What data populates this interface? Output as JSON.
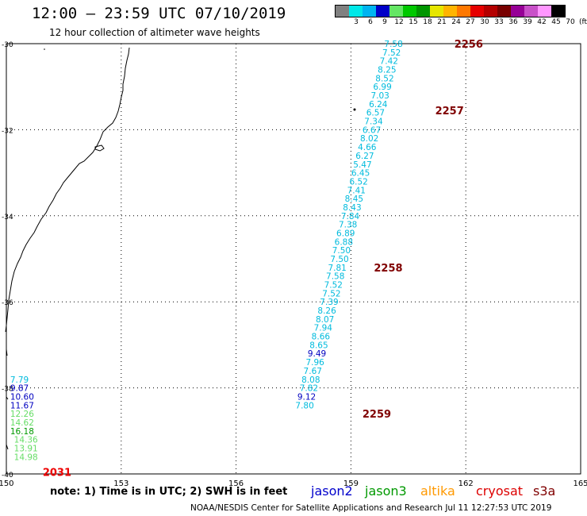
{
  "header": {
    "title": "12:00 – 23:59 UTC 07/10/2019",
    "subtitle": "12 hour collection of altimeter wave heights"
  },
  "legend": {
    "unit": "(ft)",
    "bins": [
      {
        "label": "",
        "color": "#808080"
      },
      {
        "label": "3",
        "color": "#00e8e8"
      },
      {
        "label": "6",
        "color": "#00b4f0"
      },
      {
        "label": "9",
        "color": "#0000c8"
      },
      {
        "label": "12",
        "color": "#64e664"
      },
      {
        "label": "15",
        "color": "#00c800"
      },
      {
        "label": "18",
        "color": "#009600"
      },
      {
        "label": "21",
        "color": "#e6e600"
      },
      {
        "label": "24",
        "color": "#ffb400"
      },
      {
        "label": "27",
        "color": "#ff7800"
      },
      {
        "label": "30",
        "color": "#e60000"
      },
      {
        "label": "33",
        "color": "#b40000"
      },
      {
        "label": "36",
        "color": "#780000"
      },
      {
        "label": "39",
        "color": "#960096"
      },
      {
        "label": "42",
        "color": "#c850c8"
      },
      {
        "label": "45",
        "color": "#ff96ff"
      },
      {
        "label": "70",
        "color": "#000000"
      }
    ]
  },
  "map": {
    "x_ticks": [
      "150",
      "153",
      "156",
      "159",
      "162",
      "165"
    ],
    "y_ticks": [
      "-30",
      "-32",
      "-34",
      "-36",
      "-38",
      "-40"
    ],
    "lon_range": [
      150,
      165
    ],
    "lat_range": [
      -30,
      -40
    ],
    "colors": {
      "cyan": "#00bbdd",
      "blue": "#0000c0",
      "light_green": "#66dd66",
      "green": "#009900",
      "time_label": "#800000",
      "red": "#ee0000"
    }
  },
  "tracks": [
    {
      "id": "pass-1",
      "time_labels": [
        {
          "text": "2256",
          "lon": 161.7,
          "lat": -30.0
        },
        {
          "text": "2257",
          "lon": 161.2,
          "lat": -31.55
        },
        {
          "text": "2258",
          "lon": 159.6,
          "lat": -35.2
        },
        {
          "text": "2259",
          "lon": 159.3,
          "lat": -38.6
        }
      ],
      "points": [
        {
          "text": "7.58",
          "lon": 159.87,
          "lat": -30.0,
          "color": "cyan"
        },
        {
          "text": "7.52",
          "lon": 159.82,
          "lat": -30.2,
          "color": "cyan"
        },
        {
          "text": "7.42",
          "lon": 159.75,
          "lat": -30.4,
          "color": "cyan"
        },
        {
          "text": "8.25",
          "lon": 159.7,
          "lat": -30.6,
          "color": "cyan"
        },
        {
          "text": "8.52",
          "lon": 159.64,
          "lat": -30.8,
          "color": "cyan"
        },
        {
          "text": "6.99",
          "lon": 159.58,
          "lat": -31.0,
          "color": "cyan"
        },
        {
          "text": "7.03",
          "lon": 159.52,
          "lat": -31.2,
          "color": "cyan"
        },
        {
          "text": "6.24",
          "lon": 159.47,
          "lat": -31.4,
          "color": "cyan"
        },
        {
          "text": "6.57",
          "lon": 159.4,
          "lat": -31.6,
          "color": "cyan"
        },
        {
          "text": "7.34",
          "lon": 159.35,
          "lat": -31.8,
          "color": "cyan"
        },
        {
          "text": "6.67",
          "lon": 159.3,
          "lat": -32.0,
          "color": "cyan"
        },
        {
          "text": "8.02",
          "lon": 159.24,
          "lat": -32.2,
          "color": "cyan"
        },
        {
          "text": "4.66",
          "lon": 159.18,
          "lat": -32.4,
          "color": "cyan"
        },
        {
          "text": "6.27",
          "lon": 159.12,
          "lat": -32.6,
          "color": "cyan"
        },
        {
          "text": "5.47",
          "lon": 159.06,
          "lat": -32.8,
          "color": "cyan"
        },
        {
          "text": "6.45",
          "lon": 159.01,
          "lat": -33.0,
          "color": "cyan"
        },
        {
          "text": "6.52",
          "lon": 158.96,
          "lat": -33.2,
          "color": "cyan"
        },
        {
          "text": "7.41",
          "lon": 158.9,
          "lat": -33.4,
          "color": "cyan"
        },
        {
          "text": "8.45",
          "lon": 158.84,
          "lat": -33.6,
          "color": "cyan"
        },
        {
          "text": "8.43",
          "lon": 158.79,
          "lat": -33.8,
          "color": "cyan"
        },
        {
          "text": "7.84",
          "lon": 158.74,
          "lat": -34.0,
          "color": "cyan"
        },
        {
          "text": "7.38",
          "lon": 158.68,
          "lat": -34.2,
          "color": "cyan"
        },
        {
          "text": "6.89",
          "lon": 158.62,
          "lat": -34.4,
          "color": "cyan"
        },
        {
          "text": "6.88",
          "lon": 158.57,
          "lat": -34.6,
          "color": "cyan"
        },
        {
          "text": "7.50",
          "lon": 158.51,
          "lat": -34.8,
          "color": "cyan"
        },
        {
          "text": "7.50",
          "lon": 158.46,
          "lat": -35.0,
          "color": "cyan"
        },
        {
          "text": "7.81",
          "lon": 158.4,
          "lat": -35.2,
          "color": "cyan"
        },
        {
          "text": "7.58",
          "lon": 158.35,
          "lat": -35.4,
          "color": "cyan"
        },
        {
          "text": "7.52",
          "lon": 158.3,
          "lat": -35.6,
          "color": "cyan"
        },
        {
          "text": "7.52",
          "lon": 158.25,
          "lat": -35.8,
          "color": "cyan"
        },
        {
          "text": "7.39",
          "lon": 158.19,
          "lat": -36.0,
          "color": "cyan"
        },
        {
          "text": "8.26",
          "lon": 158.13,
          "lat": -36.2,
          "color": "cyan"
        },
        {
          "text": "8.07",
          "lon": 158.08,
          "lat": -36.4,
          "color": "cyan"
        },
        {
          "text": "7.94",
          "lon": 158.03,
          "lat": -36.6,
          "color": "cyan"
        },
        {
          "text": "8.66",
          "lon": 157.97,
          "lat": -36.8,
          "color": "cyan"
        },
        {
          "text": "8.65",
          "lon": 157.92,
          "lat": -37.0,
          "color": "cyan"
        },
        {
          "text": "9.49",
          "lon": 157.87,
          "lat": -37.2,
          "color": "blue"
        },
        {
          "text": "7.96",
          "lon": 157.82,
          "lat": -37.4,
          "color": "cyan"
        },
        {
          "text": "7.67",
          "lon": 157.76,
          "lat": -37.6,
          "color": "cyan"
        },
        {
          "text": "8.08",
          "lon": 157.71,
          "lat": -37.8,
          "color": "cyan"
        },
        {
          "text": "7.82",
          "lon": 157.66,
          "lat": -38.0,
          "color": "cyan"
        },
        {
          "text": "9.12",
          "lon": 157.6,
          "lat": -38.2,
          "color": "blue"
        },
        {
          "text": "7.80",
          "lon": 157.55,
          "lat": -38.4,
          "color": "cyan"
        }
      ]
    },
    {
      "id": "pass-2",
      "time_labels": [
        {
          "text": "2031",
          "lon": 150.95,
          "lat": -39.95,
          "color": "red"
        }
      ],
      "points": [
        {
          "text": "7.79",
          "lon": 150.1,
          "lat": -37.8,
          "color": "cyan"
        },
        {
          "text": "9.87",
          "lon": 150.1,
          "lat": -38.0,
          "color": "blue"
        },
        {
          "text": "10.60",
          "lon": 150.1,
          "lat": -38.2,
          "color": "blue"
        },
        {
          "text": "11.67",
          "lon": 150.1,
          "lat": -38.4,
          "color": "blue"
        },
        {
          "text": "12.26",
          "lon": 150.1,
          "lat": -38.6,
          "color": "light_green"
        },
        {
          "text": "14.62",
          "lon": 150.1,
          "lat": -38.8,
          "color": "light_green"
        },
        {
          "text": "16.18",
          "lon": 150.1,
          "lat": -39.0,
          "color": "green"
        },
        {
          "text": "14.36",
          "lon": 150.2,
          "lat": -39.2,
          "color": "light_green"
        },
        {
          "text": "13.91",
          "lon": 150.2,
          "lat": -39.4,
          "color": "light_green"
        },
        {
          "text": "14.98",
          "lon": 150.2,
          "lat": -39.6,
          "color": "light_green"
        }
      ]
    }
  ],
  "footer": {
    "note": "note:  1) Time is in UTC;  2) SWH is in feet",
    "missions": [
      {
        "text": "jason2",
        "color": "#0000cc"
      },
      {
        "text": "jason3",
        "color": "#009900"
      },
      {
        "text": "altika",
        "color": "#ff9900"
      },
      {
        "text": "cryosat",
        "color": "#dd0000"
      },
      {
        "text": "s3a",
        "color": "#800000"
      }
    ],
    "credit": "NOAA/NESDIS Center for Satellite Applications and Research      Jul 11 12:27:53 UTC 2019"
  }
}
